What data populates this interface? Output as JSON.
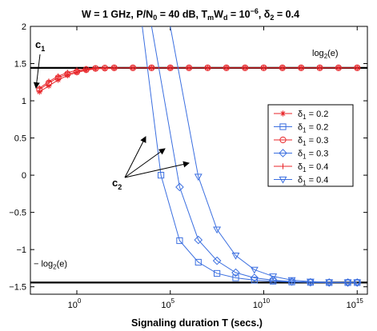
{
  "chart_data": {
    "type": "line",
    "title": {
      "pre": "W = 1 GHz,  P/N",
      "sub1": "0",
      "mid1": " = 40 dB,  T",
      "sub2": "m",
      "mid2": "W",
      "sub3": "d",
      "mid3": " = 10",
      "sup": "−6",
      "mid4": ",  δ",
      "sub4": "2",
      "post": " = 0.4"
    },
    "xlabel": "Signaling duration T (secs.)",
    "ylabel": "",
    "x_scale": "log",
    "xlim_log10": [
      -2,
      15
    ],
    "ylim": [
      -1.6,
      2
    ],
    "x_ticks": [
      {
        "base": "10",
        "exp": "0",
        "log10": 0
      },
      {
        "base": "10",
        "exp": "5",
        "log10": 5
      },
      {
        "base": "10",
        "exp": "10",
        "log10": 10
      },
      {
        "base": "10",
        "exp": "15",
        "log10": 15
      }
    ],
    "y_ticks": [
      {
        "label": "2",
        "v": 2
      },
      {
        "label": "1.5",
        "v": 1.5
      },
      {
        "label": "1",
        "v": 1
      },
      {
        "label": "0.5",
        "v": 0.5
      },
      {
        "label": "0",
        "v": 0
      },
      {
        "label": "−0.5",
        "v": -0.5
      },
      {
        "label": "−1",
        "v": -1
      },
      {
        "label": "−1.5",
        "v": -1.5
      }
    ],
    "reference_lines": [
      {
        "y": 1.4427,
        "label_pre": "log",
        "label_sub": "2",
        "label_post": "(e)"
      },
      {
        "y": -1.4427,
        "label_pre": "− log",
        "label_sub": "2",
        "label_post": "(e)"
      }
    ],
    "annotations": {
      "c1": {
        "letter": "c",
        "sub": "1"
      },
      "c2": {
        "letter": "c",
        "sub": "2"
      }
    },
    "series": [
      {
        "name_pre": "δ",
        "name_sub": "1",
        "name_post": " = 0.2",
        "color": "#e8262a",
        "marker": "star",
        "x_log10": [
          -2,
          -1.5,
          -1,
          -0.5,
          0,
          0.5,
          1,
          1.5,
          2,
          3,
          4,
          5,
          6,
          7,
          8,
          9,
          10,
          11,
          12,
          13,
          14,
          15
        ],
        "y": [
          1.12,
          1.2,
          1.28,
          1.34,
          1.38,
          1.41,
          1.43,
          1.435,
          1.44,
          1.443,
          1.443,
          1.443,
          1.443,
          1.443,
          1.443,
          1.443,
          1.443,
          1.443,
          1.443,
          1.443,
          1.443,
          1.443
        ]
      },
      {
        "name_pre": "δ",
        "name_sub": "1",
        "name_post": " = 0.2",
        "color": "#3b6fe0",
        "marker": "square",
        "x_log10": [
          3.5,
          4.5,
          5.5,
          6.5,
          7.5,
          8.5,
          9.5,
          10.5,
          11.5,
          12.5,
          13.5,
          14.5,
          15
        ],
        "y": [
          2,
          0,
          -0.88,
          -1.17,
          -1.32,
          -1.38,
          -1.41,
          -1.425,
          -1.435,
          -1.44,
          -1.443,
          -1.443,
          -1.443
        ]
      },
      {
        "name_pre": "δ",
        "name_sub": "1",
        "name_post": " = 0.3",
        "color": "#e8262a",
        "marker": "circle",
        "x_log10": [
          -2,
          -1.5,
          -1,
          -0.5,
          0,
          0.5,
          1,
          1.5,
          2,
          3,
          4,
          5,
          6,
          7,
          8,
          9,
          10,
          11,
          12,
          13,
          14,
          15
        ],
        "y": [
          1.15,
          1.24,
          1.31,
          1.36,
          1.39,
          1.42,
          1.435,
          1.44,
          1.443,
          1.443,
          1.443,
          1.443,
          1.443,
          1.443,
          1.443,
          1.443,
          1.443,
          1.443,
          1.443,
          1.443,
          1.443,
          1.443
        ]
      },
      {
        "name_pre": "δ",
        "name_sub": "1",
        "name_post": " = 0.3",
        "color": "#3b6fe0",
        "marker": "diamond",
        "x_log10": [
          4,
          5.5,
          6.5,
          7.5,
          8.5,
          9.5,
          10.5,
          11.5,
          12.5,
          13.5,
          14.5,
          15
        ],
        "y": [
          2,
          -0.16,
          -0.87,
          -1.15,
          -1.31,
          -1.38,
          -1.41,
          -1.43,
          -1.44,
          -1.443,
          -1.443,
          -1.443
        ]
      },
      {
        "name_pre": "δ",
        "name_sub": "1",
        "name_post": " = 0.4",
        "color": "#e8262a",
        "marker": "plus",
        "x_log10": [
          -2,
          -1.5,
          -1,
          -0.5,
          0,
          0.5,
          1,
          1.5,
          2,
          3,
          4,
          5,
          6,
          7,
          8,
          9,
          10,
          11,
          12,
          13,
          14,
          15
        ],
        "y": [
          1.17,
          1.26,
          1.33,
          1.38,
          1.41,
          1.43,
          1.44,
          1.443,
          1.443,
          1.443,
          1.443,
          1.443,
          1.443,
          1.443,
          1.443,
          1.443,
          1.443,
          1.443,
          1.443,
          1.443,
          1.443,
          1.443
        ]
      },
      {
        "name_pre": "δ",
        "name_sub": "1",
        "name_post": " = 0.4",
        "color": "#3b6fe0",
        "marker": "triangle-down",
        "x_log10": [
          5,
          6.5,
          7.5,
          8.5,
          9.5,
          10.5,
          11.5,
          12.5,
          13.5,
          14.5,
          15
        ],
        "y": [
          2,
          -0.02,
          -0.73,
          -1.08,
          -1.27,
          -1.36,
          -1.41,
          -1.43,
          -1.44,
          -1.443,
          -1.443
        ]
      }
    ],
    "legend_position": "right",
    "grid": false
  }
}
